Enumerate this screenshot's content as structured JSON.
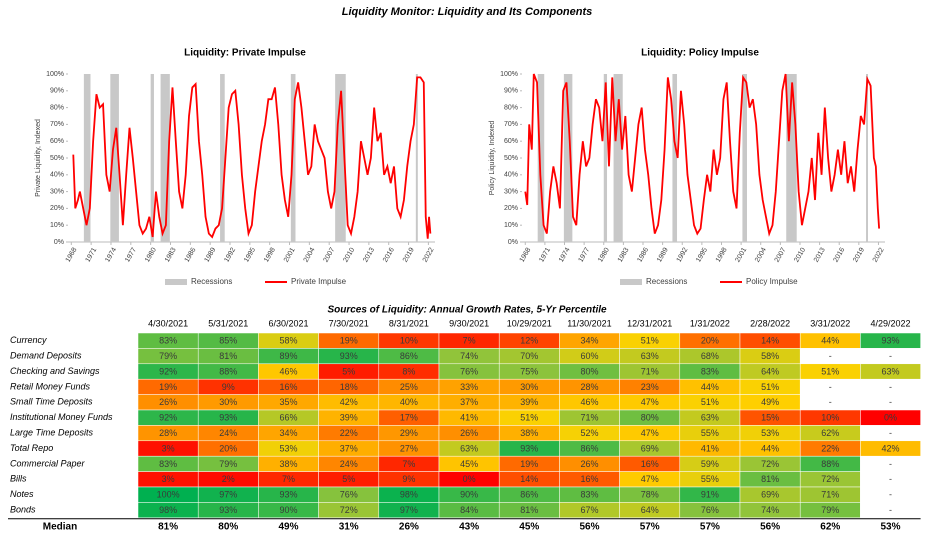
{
  "title": "Liquidity Monitor: Liquidity and Its Components",
  "chart_data": [
    {
      "type": "line",
      "title": "Liquidity: Private Impulse",
      "y_label": "Private Liquidity, Indexed",
      "xlim": [
        1967.5,
        2023
      ],
      "xticks": [
        1968,
        1971,
        1974,
        1977,
        1980,
        1983,
        1986,
        1989,
        1992,
        1995,
        1998,
        2001,
        2004,
        2007,
        2010,
        2013,
        2016,
        2019,
        2022
      ],
      "ylim": [
        0,
        100
      ],
      "yticks": [
        {
          "value": 0,
          "label": "0%"
        },
        {
          "value": 10,
          "label": "10%"
        },
        {
          "value": 20,
          "label": "20%"
        },
        {
          "value": 30,
          "label": "30%"
        },
        {
          "value": 40,
          "label": "40%"
        },
        {
          "value": 50,
          "label": "50%"
        },
        {
          "value": 60,
          "label": "60%"
        },
        {
          "value": 70,
          "label": "70%"
        },
        {
          "value": 80,
          "label": "80%"
        },
        {
          "value": 90,
          "label": "90%"
        },
        {
          "value": 100,
          "label": "100%"
        }
      ],
      "grid": false,
      "legend": "bottom",
      "x": [
        1968.3,
        1968.6,
        1969.0,
        1969.3,
        1969.8,
        1970.3,
        1970.8,
        1971.3,
        1971.8,
        1972.3,
        1972.8,
        1973.3,
        1973.8,
        1974.3,
        1974.8,
        1975.3,
        1975.8,
        1976.3,
        1976.8,
        1977.3,
        1977.8,
        1978.3,
        1978.8,
        1979.3,
        1979.8,
        1980.3,
        1980.8,
        1981.3,
        1981.8,
        1982.3,
        1982.8,
        1983.3,
        1983.8,
        1984.3,
        1984.8,
        1985.3,
        1985.8,
        1986.3,
        1986.8,
        1987.3,
        1987.8,
        1988.3,
        1988.8,
        1989.3,
        1989.8,
        1990.3,
        1990.8,
        1991.3,
        1991.8,
        1992.3,
        1992.8,
        1993.3,
        1993.8,
        1994.3,
        1994.8,
        1995.3,
        1995.8,
        1996.3,
        1996.8,
        1997.3,
        1997.8,
        1998.3,
        1998.8,
        1999.3,
        1999.8,
        2000.3,
        2000.8,
        2001.3,
        2001.8,
        2002.3,
        2002.8,
        2003.3,
        2003.8,
        2004.3,
        2004.8,
        2005.3,
        2005.8,
        2006.3,
        2006.8,
        2007.3,
        2007.8,
        2008.3,
        2008.8,
        2009.3,
        2009.8,
        2010.3,
        2010.8,
        2011.3,
        2011.8,
        2012.3,
        2012.8,
        2013.3,
        2013.8,
        2014.3,
        2014.8,
        2015.3,
        2015.8,
        2016.3,
        2016.8,
        2017.3,
        2017.8,
        2018.3,
        2018.8,
        2019.3,
        2019.8,
        2020.3,
        2020.8,
        2021.3,
        2021.6,
        2021.9,
        2022.1,
        2022.3
      ],
      "series": [
        {
          "name": "Recessions",
          "color": "#c8c8c8",
          "ranges": [
            [
              1969.9,
              1970.9
            ],
            [
              1973.9,
              1975.2
            ],
            [
              1980.0,
              1980.5
            ],
            [
              1981.5,
              1982.9
            ],
            [
              1990.5,
              1991.2
            ],
            [
              2001.2,
              2001.9
            ],
            [
              2007.9,
              2009.5
            ],
            [
              2020.1,
              2020.4
            ]
          ]
        },
        {
          "name": "Private Impulse",
          "color": "#ff0000",
          "values": [
            52,
            20,
            25,
            30,
            20,
            10,
            20,
            60,
            88,
            80,
            82,
            40,
            30,
            55,
            68,
            40,
            10,
            40,
            68,
            50,
            30,
            10,
            5,
            8,
            15,
            3,
            30,
            15,
            5,
            10,
            60,
            92,
            60,
            30,
            20,
            40,
            75,
            92,
            94,
            60,
            40,
            15,
            5,
            3,
            8,
            10,
            20,
            50,
            80,
            88,
            90,
            70,
            40,
            20,
            5,
            10,
            30,
            45,
            60,
            70,
            85,
            85,
            92,
            70,
            40,
            25,
            15,
            40,
            85,
            95,
            80,
            60,
            40,
            45,
            70,
            60,
            55,
            50,
            30,
            20,
            30,
            70,
            90,
            50,
            10,
            5,
            15,
            30,
            60,
            50,
            40,
            50,
            80,
            60,
            65,
            40,
            45,
            35,
            45,
            20,
            15,
            25,
            45,
            60,
            70,
            98,
            98,
            95,
            15,
            2,
            15,
            5
          ]
        }
      ]
    },
    {
      "type": "line",
      "title": "Liquidity: Policy Impulse",
      "y_label": "Policy Liquidity, Indexed",
      "xlim": [
        1967.5,
        2023
      ],
      "xticks": [
        1968,
        1971,
        1974,
        1977,
        1980,
        1983,
        1986,
        1989,
        1992,
        1995,
        1998,
        2001,
        2004,
        2007,
        2010,
        2013,
        2016,
        2019,
        2022
      ],
      "ylim": [
        0,
        100
      ],
      "yticks": [
        {
          "value": 0,
          "label": "0%"
        },
        {
          "value": 10,
          "label": "10%"
        },
        {
          "value": 20,
          "label": "20%"
        },
        {
          "value": 30,
          "label": "30%"
        },
        {
          "value": 40,
          "label": "40%"
        },
        {
          "value": 50,
          "label": "50%"
        },
        {
          "value": 60,
          "label": "60%"
        },
        {
          "value": 70,
          "label": "70%"
        },
        {
          "value": 80,
          "label": "80%"
        },
        {
          "value": 90,
          "label": "90%"
        },
        {
          "value": 100,
          "label": "100%"
        }
      ],
      "grid": false,
      "legend": "bottom",
      "x": [
        1968.0,
        1968.3,
        1968.6,
        1969.0,
        1969.3,
        1969.8,
        1970.3,
        1970.8,
        1971.3,
        1971.8,
        1972.3,
        1972.8,
        1973.3,
        1973.8,
        1974.3,
        1974.8,
        1975.3,
        1975.8,
        1976.3,
        1976.8,
        1977.3,
        1977.8,
        1978.3,
        1978.8,
        1979.3,
        1979.8,
        1980.3,
        1980.8,
        1981.3,
        1981.8,
        1982.3,
        1982.8,
        1983.3,
        1983.8,
        1984.3,
        1984.8,
        1985.3,
        1985.8,
        1986.3,
        1986.8,
        1987.3,
        1987.8,
        1988.3,
        1988.8,
        1989.3,
        1989.8,
        1990.3,
        1990.8,
        1991.3,
        1991.8,
        1992.3,
        1992.8,
        1993.3,
        1993.8,
        1994.3,
        1994.8,
        1995.3,
        1995.8,
        1996.3,
        1996.8,
        1997.3,
        1997.8,
        1998.3,
        1998.8,
        1999.3,
        1999.8,
        2000.3,
        2000.8,
        2001.3,
        2001.8,
        2002.3,
        2002.8,
        2003.3,
        2003.8,
        2004.3,
        2004.8,
        2005.3,
        2005.8,
        2006.3,
        2006.8,
        2007.3,
        2007.8,
        2008.3,
        2008.8,
        2009.3,
        2009.8,
        2010.3,
        2010.8,
        2011.3,
        2011.8,
        2012.3,
        2012.8,
        2013.3,
        2013.8,
        2014.3,
        2014.8,
        2015.3,
        2015.8,
        2016.3,
        2016.8,
        2017.3,
        2017.8,
        2018.3,
        2018.8,
        2019.3,
        2019.8,
        2020.3,
        2020.8,
        2021.3,
        2021.6,
        2021.9,
        2022.1
      ],
      "series": [
        {
          "name": "Recessions",
          "color": "#c8c8c8",
          "ranges": [
            [
              1969.9,
              1970.9
            ],
            [
              1973.9,
              1975.2
            ],
            [
              1980.0,
              1980.5
            ],
            [
              1981.5,
              1982.9
            ],
            [
              1990.5,
              1991.2
            ],
            [
              2001.2,
              2001.9
            ],
            [
              2007.9,
              2009.5
            ],
            [
              2020.1,
              2020.4
            ]
          ]
        },
        {
          "name": "Policy Impulse",
          "color": "#ff0000",
          "values": [
            30,
            22,
            70,
            55,
            100,
            95,
            40,
            10,
            5,
            30,
            45,
            35,
            20,
            90,
            95,
            60,
            15,
            10,
            40,
            60,
            45,
            50,
            70,
            85,
            80,
            60,
            95,
            45,
            98,
            60,
            85,
            55,
            75,
            40,
            30,
            50,
            70,
            80,
            55,
            40,
            20,
            5,
            10,
            25,
            55,
            98,
            85,
            60,
            50,
            90,
            70,
            40,
            25,
            10,
            5,
            8,
            25,
            40,
            30,
            55,
            40,
            50,
            85,
            95,
            60,
            30,
            20,
            65,
            98,
            95,
            80,
            85,
            70,
            40,
            25,
            15,
            5,
            10,
            30,
            60,
            90,
            100,
            60,
            95,
            70,
            30,
            10,
            20,
            30,
            50,
            25,
            65,
            40,
            80,
            50,
            30,
            40,
            55,
            40,
            60,
            35,
            45,
            30,
            55,
            75,
            70,
            97,
            93,
            50,
            45,
            20,
            8
          ]
        }
      ]
    }
  ],
  "table": {
    "title": "Sources of Liquidity: Annual Growth Rates, 5-Yr Percentile",
    "columns": [
      "4/30/2021",
      "5/31/2021",
      "6/30/2021",
      "7/30/2021",
      "8/31/2021",
      "9/30/2021",
      "10/29/2021",
      "11/30/2021",
      "12/31/2021",
      "1/31/2022",
      "2/28/2022",
      "3/31/2022",
      "4/29/2022"
    ],
    "rows": [
      {
        "label": "Currency",
        "cells": [
          "83%",
          "85%",
          "58%",
          "19%",
          "10%",
          "7%",
          "12%",
          "34%",
          "51%",
          "20%",
          "14%",
          "44%",
          "93%"
        ]
      },
      {
        "label": "Demand Deposits",
        "cells": [
          "79%",
          "81%",
          "89%",
          "93%",
          "86%",
          "74%",
          "70%",
          "60%",
          "63%",
          "68%",
          "58%",
          "-",
          "-"
        ]
      },
      {
        "label": "Checking and Savings",
        "cells": [
          "92%",
          "88%",
          "46%",
          "5%",
          "8%",
          "76%",
          "75%",
          "80%",
          "71%",
          "83%",
          "64%",
          "51%",
          "63%"
        ]
      },
      {
        "label": "Retail Money Funds",
        "cells": [
          "19%",
          "9%",
          "16%",
          "18%",
          "25%",
          "33%",
          "30%",
          "28%",
          "23%",
          "44%",
          "51%",
          "-",
          "-"
        ]
      },
      {
        "label": "Small Time Deposits",
        "cells": [
          "26%",
          "30%",
          "35%",
          "42%",
          "40%",
          "37%",
          "39%",
          "46%",
          "47%",
          "51%",
          "49%",
          "-",
          "-"
        ]
      },
      {
        "label": "Institutional Money Funds",
        "cells": [
          "92%",
          "93%",
          "66%",
          "39%",
          "17%",
          "41%",
          "51%",
          "71%",
          "80%",
          "63%",
          "15%",
          "10%",
          "0%"
        ]
      },
      {
        "label": "Large Time Deposits",
        "cells": [
          "28%",
          "24%",
          "34%",
          "22%",
          "29%",
          "26%",
          "38%",
          "52%",
          "47%",
          "55%",
          "53%",
          "62%",
          "-"
        ]
      },
      {
        "label": "Total Repo",
        "cells": [
          "3%",
          "20%",
          "53%",
          "37%",
          "27%",
          "63%",
          "93%",
          "86%",
          "69%",
          "41%",
          "44%",
          "22%",
          "42%"
        ]
      },
      {
        "label": "Commercial Paper",
        "cells": [
          "83%",
          "79%",
          "38%",
          "24%",
          "7%",
          "45%",
          "19%",
          "26%",
          "16%",
          "59%",
          "72%",
          "88%",
          "-"
        ]
      },
      {
        "label": "Bills",
        "cells": [
          "3%",
          "2%",
          "7%",
          "5%",
          "9%",
          "0%",
          "14%",
          "16%",
          "47%",
          "55%",
          "81%",
          "72%",
          "-"
        ]
      },
      {
        "label": "Notes",
        "cells": [
          "100%",
          "97%",
          "93%",
          "76%",
          "98%",
          "90%",
          "86%",
          "83%",
          "78%",
          "91%",
          "69%",
          "71%",
          "-"
        ]
      },
      {
        "label": "Bonds",
        "cells": [
          "98%",
          "93%",
          "90%",
          "72%",
          "97%",
          "84%",
          "81%",
          "67%",
          "64%",
          "76%",
          "74%",
          "79%",
          "-"
        ]
      }
    ],
    "median": {
      "label": "Median",
      "cells": [
        "81%",
        "80%",
        "49%",
        "31%",
        "26%",
        "43%",
        "45%",
        "56%",
        "57%",
        "57%",
        "56%",
        "62%",
        "53%"
      ]
    }
  }
}
